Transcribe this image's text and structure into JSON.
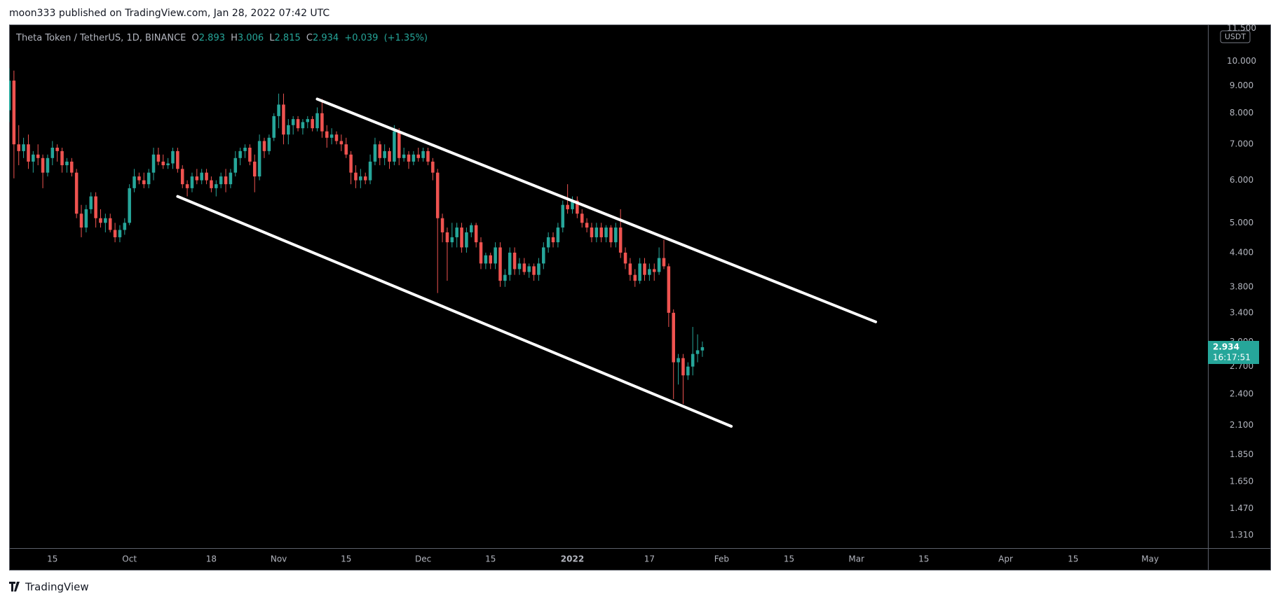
{
  "header": {
    "publisher_line": "moon333 published on TradingView.com, Jan 28, 2022 07:42 UTC"
  },
  "chart_data": {
    "type": "candlestick",
    "symbol": "Theta Token / TetherUS, 1D, BINANCE",
    "ohlc_labels": [
      "O",
      "H",
      "L",
      "C"
    ],
    "change": "+0.039",
    "change_pct": "(+1.35%)",
    "currency": "USDT",
    "countdown": "16:17:51",
    "up_color": "#26a69a",
    "down_color": "#ef5350",
    "log_scale": true,
    "grid": false,
    "x": [
      "2021-09-06",
      "2021-09-07",
      "2021-09-08",
      "2021-09-09",
      "2021-09-10",
      "2021-09-11",
      "2021-09-12",
      "2021-09-13",
      "2021-09-14",
      "2021-09-15",
      "2021-09-16",
      "2021-09-17",
      "2021-09-18",
      "2021-09-19",
      "2021-09-20",
      "2021-09-21",
      "2021-09-22",
      "2021-09-23",
      "2021-09-24",
      "2021-09-25",
      "2021-09-26",
      "2021-09-27",
      "2021-09-28",
      "2021-09-29",
      "2021-09-30",
      "2021-10-01",
      "2021-10-02",
      "2021-10-03",
      "2021-10-04",
      "2021-10-05",
      "2021-10-06",
      "2021-10-07",
      "2021-10-08",
      "2021-10-09",
      "2021-10-10",
      "2021-10-11",
      "2021-10-12",
      "2021-10-13",
      "2021-10-14",
      "2021-10-15",
      "2021-10-16",
      "2021-10-17",
      "2021-10-18",
      "2021-10-19",
      "2021-10-20",
      "2021-10-21",
      "2021-10-22",
      "2021-10-23",
      "2021-10-24",
      "2021-10-25",
      "2021-10-26",
      "2021-10-27",
      "2021-10-28",
      "2021-10-29",
      "2021-10-30",
      "2021-10-31",
      "2021-11-01",
      "2021-11-02",
      "2021-11-03",
      "2021-11-04",
      "2021-11-05",
      "2021-11-06",
      "2021-11-07",
      "2021-11-08",
      "2021-11-09",
      "2021-11-10",
      "2021-11-11",
      "2021-11-12",
      "2021-11-13",
      "2021-11-14",
      "2021-11-15",
      "2021-11-16",
      "2021-11-17",
      "2021-11-18",
      "2021-11-19",
      "2021-11-20",
      "2021-11-21",
      "2021-11-22",
      "2021-11-23",
      "2021-11-24",
      "2021-11-25",
      "2021-11-26",
      "2021-11-27",
      "2021-11-28",
      "2021-11-29",
      "2021-11-30",
      "2021-12-01",
      "2021-12-02",
      "2021-12-03",
      "2021-12-04",
      "2021-12-05",
      "2021-12-06",
      "2021-12-07",
      "2021-12-08",
      "2021-12-09",
      "2021-12-10",
      "2021-12-11",
      "2021-12-12",
      "2021-12-13",
      "2021-12-14",
      "2021-12-15",
      "2021-12-16",
      "2021-12-17",
      "2021-12-18",
      "2021-12-19",
      "2021-12-20",
      "2021-12-21",
      "2021-12-22",
      "2021-12-23",
      "2021-12-24",
      "2021-12-25",
      "2021-12-26",
      "2021-12-27",
      "2021-12-28",
      "2021-12-29",
      "2021-12-30",
      "2021-12-31",
      "2022-01-01",
      "2022-01-02",
      "2022-01-03",
      "2022-01-04",
      "2022-01-05",
      "2022-01-06",
      "2022-01-07",
      "2022-01-08",
      "2022-01-09",
      "2022-01-10",
      "2022-01-11",
      "2022-01-12",
      "2022-01-13",
      "2022-01-14",
      "2022-01-15",
      "2022-01-16",
      "2022-01-17",
      "2022-01-18",
      "2022-01-19",
      "2022-01-20",
      "2022-01-21",
      "2022-01-22",
      "2022-01-23",
      "2022-01-24",
      "2022-01-25",
      "2022-01-26",
      "2022-01-27",
      "2022-01-28"
    ],
    "open": [
      8.1,
      9.2,
      7.0,
      6.8,
      7.0,
      6.5,
      6.7,
      6.6,
      6.2,
      6.6,
      6.9,
      6.8,
      6.4,
      6.5,
      6.2,
      5.2,
      4.9,
      5.3,
      5.6,
      5.1,
      5.0,
      5.1,
      4.85,
      4.7,
      4.85,
      5.0,
      5.8,
      6.1,
      6.0,
      5.9,
      6.2,
      6.7,
      6.5,
      6.4,
      6.45,
      6.8,
      6.3,
      5.9,
      5.8,
      6.1,
      6.0,
      6.2,
      6.0,
      5.8,
      5.9,
      6.1,
      5.9,
      6.2,
      6.6,
      6.8,
      6.9,
      6.5,
      6.1,
      7.1,
      6.8,
      7.2,
      7.9,
      8.3,
      7.3,
      7.6,
      7.8,
      7.5,
      7.7,
      7.8,
      7.5,
      8.0,
      7.4,
      7.2,
      7.3,
      7.1,
      7.0,
      6.7,
      6.2,
      6.0,
      6.1,
      6.0,
      6.5,
      7.0,
      6.6,
      6.8,
      6.5,
      7.4,
      6.6,
      6.7,
      6.5,
      6.7,
      6.6,
      6.8,
      6.5,
      6.2,
      5.1,
      4.8,
      4.6,
      4.7,
      4.9,
      4.5,
      4.8,
      4.95,
      4.6,
      4.2,
      4.35,
      4.2,
      4.5,
      3.9,
      4.0,
      4.4,
      4.1,
      4.2,
      4.05,
      4.15,
      4.0,
      4.2,
      4.5,
      4.7,
      4.6,
      4.9,
      5.4,
      5.3,
      5.5,
      5.2,
      5.0,
      4.9,
      4.7,
      4.9,
      4.7,
      4.9,
      4.6,
      4.9,
      4.4,
      4.2,
      4.0,
      3.9,
      4.2,
      4.0,
      4.1,
      4.05,
      4.3,
      4.15,
      3.4,
      2.75,
      2.8,
      2.6,
      2.7,
      2.85,
      2.893
    ],
    "high": [
      9.7,
      9.6,
      7.6,
      7.2,
      7.3,
      6.8,
      7.0,
      6.7,
      6.7,
      7.1,
      7.0,
      6.9,
      6.6,
      6.6,
      6.3,
      5.4,
      5.4,
      5.7,
      5.7,
      5.3,
      5.2,
      5.2,
      5.0,
      4.95,
      5.1,
      5.9,
      6.3,
      6.2,
      6.2,
      6.3,
      6.9,
      6.9,
      6.7,
      6.6,
      6.9,
      6.9,
      6.4,
      6.0,
      6.2,
      6.3,
      6.3,
      6.3,
      6.1,
      6.0,
      6.2,
      6.3,
      6.3,
      6.8,
      6.9,
      7.0,
      7.0,
      6.7,
      7.3,
      7.2,
      7.3,
      8.0,
      8.7,
      8.7,
      7.8,
      7.9,
      7.9,
      7.8,
      7.9,
      7.9,
      8.2,
      8.5,
      7.6,
      7.5,
      7.4,
      7.3,
      7.2,
      6.8,
      6.4,
      6.3,
      6.2,
      6.7,
      7.2,
      7.1,
      7.0,
      6.9,
      7.6,
      7.5,
      6.9,
      6.8,
      6.8,
      6.9,
      6.9,
      6.9,
      6.6,
      6.3,
      5.2,
      4.9,
      5.0,
      5.0,
      5.0,
      4.9,
      5.0,
      5.0,
      4.7,
      4.4,
      4.4,
      4.6,
      4.6,
      4.1,
      4.5,
      4.5,
      4.3,
      4.3,
      4.2,
      4.2,
      4.3,
      4.6,
      4.8,
      4.8,
      5.0,
      5.5,
      5.9,
      5.6,
      5.6,
      5.3,
      5.1,
      5.0,
      5.0,
      5.0,
      4.95,
      4.95,
      5.0,
      5.3,
      4.5,
      4.3,
      4.1,
      4.3,
      4.3,
      4.2,
      4.2,
      4.5,
      4.65,
      4.2,
      3.45,
      2.85,
      2.85,
      2.75,
      3.2,
      3.1,
      3.006
    ],
    "low": [
      7.7,
      6.05,
      6.4,
      6.6,
      6.3,
      6.2,
      6.4,
      5.8,
      6.1,
      6.4,
      6.5,
      6.2,
      6.2,
      6.1,
      5.1,
      4.7,
      4.8,
      5.2,
      4.9,
      4.9,
      4.8,
      4.8,
      4.6,
      4.6,
      4.75,
      4.95,
      5.7,
      5.9,
      5.8,
      5.8,
      6.0,
      6.4,
      6.3,
      6.3,
      6.3,
      6.2,
      5.8,
      5.6,
      5.7,
      5.9,
      5.9,
      5.9,
      5.7,
      5.6,
      5.8,
      5.7,
      5.8,
      6.1,
      6.4,
      6.6,
      6.4,
      5.7,
      6.0,
      6.6,
      6.7,
      7.1,
      7.5,
      7.0,
      7.0,
      7.3,
      7.4,
      7.3,
      7.5,
      7.4,
      7.4,
      7.2,
      6.9,
      7.0,
      7.0,
      6.8,
      6.6,
      5.9,
      5.8,
      5.8,
      5.9,
      5.9,
      6.4,
      6.4,
      6.4,
      6.3,
      6.4,
      6.4,
      6.5,
      6.3,
      6.4,
      6.5,
      6.5,
      6.4,
      6.0,
      3.7,
      4.6,
      3.9,
      4.5,
      4.5,
      4.4,
      4.4,
      4.7,
      4.5,
      4.1,
      4.1,
      4.1,
      4.1,
      3.8,
      3.8,
      3.9,
      4.0,
      4.0,
      4.0,
      3.95,
      3.9,
      3.9,
      4.1,
      4.4,
      4.5,
      4.5,
      4.8,
      5.2,
      5.2,
      5.1,
      4.9,
      4.8,
      4.6,
      4.6,
      4.6,
      4.6,
      4.5,
      4.5,
      4.3,
      4.1,
      3.9,
      3.8,
      3.85,
      3.9,
      3.9,
      3.9,
      4.0,
      4.1,
      3.2,
      2.35,
      2.5,
      2.3,
      2.55,
      2.6,
      2.75,
      2.815
    ],
    "close": [
      9.2,
      7.0,
      6.8,
      7.0,
      6.5,
      6.7,
      6.6,
      6.2,
      6.6,
      6.9,
      6.8,
      6.4,
      6.5,
      6.2,
      5.2,
      4.9,
      5.3,
      5.6,
      5.1,
      5.0,
      5.1,
      4.85,
      4.7,
      4.85,
      5.0,
      5.8,
      6.1,
      6.0,
      5.9,
      6.2,
      6.7,
      6.5,
      6.4,
      6.45,
      6.8,
      6.3,
      5.9,
      5.8,
      6.1,
      6.0,
      6.2,
      6.0,
      5.8,
      5.9,
      6.1,
      5.9,
      6.2,
      6.6,
      6.8,
      6.9,
      6.5,
      6.1,
      7.1,
      6.8,
      7.2,
      7.9,
      8.3,
      7.3,
      7.6,
      7.8,
      7.5,
      7.7,
      7.8,
      7.5,
      8.0,
      7.4,
      7.2,
      7.3,
      7.1,
      7.0,
      6.7,
      6.2,
      6.0,
      6.1,
      6.0,
      6.5,
      7.0,
      6.6,
      6.8,
      6.5,
      7.4,
      6.6,
      6.7,
      6.5,
      6.7,
      6.6,
      6.8,
      6.5,
      6.2,
      5.1,
      4.8,
      4.6,
      4.7,
      4.9,
      4.5,
      4.8,
      4.95,
      4.6,
      4.2,
      4.35,
      4.2,
      4.5,
      3.9,
      4.0,
      4.4,
      4.1,
      4.2,
      4.05,
      4.15,
      4.0,
      4.2,
      4.5,
      4.7,
      4.6,
      4.9,
      5.4,
      5.3,
      5.5,
      5.2,
      5.0,
      4.9,
      4.7,
      4.9,
      4.7,
      4.9,
      4.6,
      4.9,
      4.4,
      4.2,
      4.0,
      3.9,
      4.2,
      4.0,
      4.1,
      4.05,
      4.3,
      4.15,
      3.4,
      2.75,
      2.8,
      2.6,
      2.7,
      2.85,
      2.895,
      2.934
    ],
    "ylim": [
      1.24,
      11.7
    ],
    "yticks": [
      {
        "value": 11.5,
        "label": "11.500"
      },
      {
        "value": 10,
        "label": "10.000"
      },
      {
        "value": 9,
        "label": "9.000"
      },
      {
        "value": 8,
        "label": "8.000"
      },
      {
        "value": 7,
        "label": "7.000"
      },
      {
        "value": 6,
        "label": "6.000"
      },
      {
        "value": 5,
        "label": "5.000"
      },
      {
        "value": 4.4,
        "label": "4.400"
      },
      {
        "value": 3.8,
        "label": "3.800"
      },
      {
        "value": 3.4,
        "label": "3.400"
      },
      {
        "value": 3,
        "label": "3.000"
      },
      {
        "value": 2.7,
        "label": "2.700"
      },
      {
        "value": 2.4,
        "label": "2.400"
      },
      {
        "value": 2.1,
        "label": "2.100"
      },
      {
        "value": 1.85,
        "label": "1.850"
      },
      {
        "value": 1.65,
        "label": "1.650"
      },
      {
        "value": 1.47,
        "label": "1.470"
      },
      {
        "value": 1.31,
        "label": "1.310"
      }
    ],
    "xlim": [
      "2021-09-06",
      "2022-05-13"
    ],
    "xticks": [
      {
        "value": "2021-09-15",
        "label": "15"
      },
      {
        "value": "2021-10-01",
        "label": "Oct"
      },
      {
        "value": "2021-10-18",
        "label": "18"
      },
      {
        "value": "2021-11-01",
        "label": "Nov"
      },
      {
        "value": "2021-11-15",
        "label": "15"
      },
      {
        "value": "2021-12-01",
        "label": "Dec"
      },
      {
        "value": "2021-12-15",
        "label": "15"
      },
      {
        "value": "2022-01-01",
        "label": "2022"
      },
      {
        "value": "2022-01-17",
        "label": "17"
      },
      {
        "value": "2022-02-01",
        "label": "Feb"
      },
      {
        "value": "2022-02-15",
        "label": "15"
      },
      {
        "value": "2022-03-01",
        "label": "Mar"
      },
      {
        "value": "2022-03-15",
        "label": "15"
      },
      {
        "value": "2022-04-01",
        "label": "Apr"
      },
      {
        "value": "2022-04-15",
        "label": "15"
      },
      {
        "value": "2022-05-01",
        "label": "May"
      }
    ],
    "trendlines": [
      {
        "color": "#ffffff",
        "x": [
          "2021-11-09",
          "2022-03-05"
        ],
        "y": [
          8.5,
          3.27
        ]
      },
      {
        "color": "#ffffff",
        "x": [
          "2021-10-11",
          "2022-02-03"
        ],
        "y": [
          5.6,
          2.09
        ]
      }
    ]
  },
  "footer": {
    "brand": "TradingView"
  }
}
